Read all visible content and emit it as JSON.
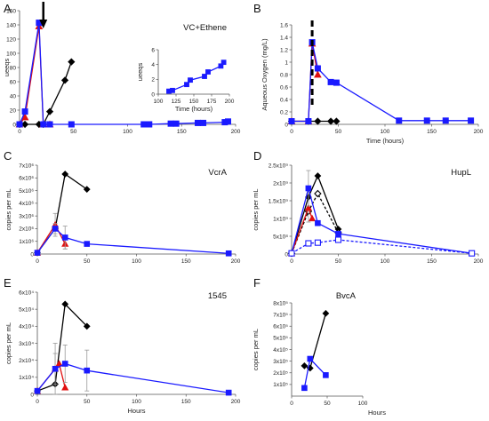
{
  "figure": {
    "panel_letters": [
      "A",
      "B",
      "C",
      "D",
      "E",
      "F"
    ]
  },
  "chart_data": [
    {
      "panel": "A",
      "type": "line",
      "title": "VC+Ethene",
      "xlabel": "",
      "ylabel": "ueeqs",
      "xlim": [
        0,
        200
      ],
      "ylim": [
        0,
        160
      ],
      "xticks": [
        "0",
        "50",
        "100",
        "150",
        "200"
      ],
      "yticks": [
        "0",
        "20",
        "40",
        "60",
        "80",
        "100",
        "120",
        "140",
        "160"
      ],
      "annotation": "arrow pointing down at ~22 hours",
      "series": [
        {
          "color": "#000000",
          "marker": "diamond",
          "x": [
            0,
            5,
            18,
            22,
            28,
            42,
            48
          ],
          "y": [
            0,
            0,
            0,
            0,
            18,
            62,
            88
          ]
        },
        {
          "color": "#e01010",
          "marker": "triangle",
          "x": [
            0,
            5,
            18,
            22,
            28
          ],
          "y": [
            0,
            10,
            138,
            0,
            0
          ]
        },
        {
          "color": "#1a1aff",
          "marker": "square",
          "x": [
            0,
            5,
            18,
            22,
            28,
            48,
            115,
            120,
            140,
            145,
            165,
            170,
            190,
            193
          ],
          "y": [
            0,
            18,
            143,
            0,
            0,
            0,
            0,
            0,
            1,
            1,
            2,
            2,
            3,
            4
          ]
        }
      ],
      "inset": {
        "xlabel": "Time (hours)",
        "ylabel": "ueeqs",
        "xlim": [
          100,
          200
        ],
        "ylim": [
          0,
          6
        ],
        "xticks": [
          "100",
          "125",
          "150",
          "175",
          "200"
        ],
        "yticks": [
          "0",
          "2",
          "4",
          "6"
        ],
        "series": [
          {
            "color": "#1a1aff",
            "marker": "square",
            "x": [
              115,
              120,
              140,
              145,
              165,
              170,
              188,
              192
            ],
            "y": [
              0.4,
              0.5,
              1.3,
              1.9,
              2.4,
              3.0,
              3.8,
              4.3
            ]
          }
        ]
      }
    },
    {
      "panel": "B",
      "type": "line",
      "title": "",
      "xlabel": "Time (hours)",
      "ylabel": "Aqueous Oxygen (mg/L)",
      "xlim": [
        0,
        200
      ],
      "ylim": [
        0,
        1.6
      ],
      "xticks": [
        "0",
        "50",
        "100",
        "150",
        "200"
      ],
      "yticks": [
        "0",
        "0.2",
        "0.4",
        "0.6",
        "0.8",
        "1",
        "1.2",
        "1.4",
        "1.6"
      ],
      "annotation": "dashed vertical line at ~22 hours",
      "series": [
        {
          "color": "#000000",
          "marker": "diamond",
          "x": [
            0,
            18,
            28,
            42,
            48
          ],
          "y": [
            0.05,
            0.05,
            0.05,
            0.05,
            0.05
          ]
        },
        {
          "color": "#e01010",
          "marker": "triangle",
          "x": [
            0,
            18,
            22,
            28
          ],
          "y": [
            0.05,
            0.05,
            1.3,
            0.8
          ]
        },
        {
          "color": "#1a1aff",
          "marker": "square",
          "x": [
            0,
            18,
            22,
            28,
            42,
            48,
            115,
            145,
            165,
            192
          ],
          "y": [
            0.05,
            0.05,
            1.32,
            0.9,
            0.68,
            0.67,
            0.06,
            0.06,
            0.06,
            0.06
          ]
        }
      ]
    },
    {
      "panel": "C",
      "type": "line",
      "title": "VcrA",
      "xlabel": "",
      "ylabel": "copies per mL",
      "xlim": [
        0,
        200
      ],
      "ylim": [
        0,
        7
      ],
      "ytick_unit": "× 10^6",
      "xticks": [
        "0",
        "50",
        "100",
        "150",
        "200"
      ],
      "yticks": [
        "0",
        "1x10⁶",
        "2x10⁶",
        "3x10⁶",
        "4x10⁶",
        "5x10⁶",
        "6x10⁶",
        "7x10⁶"
      ],
      "series": [
        {
          "color": "#000000",
          "marker": "diamond",
          "x": [
            0,
            18,
            28,
            50
          ],
          "y": [
            0.1,
            2.0,
            6.3,
            5.1
          ]
        },
        {
          "color": "#e01010",
          "marker": "triangle",
          "x": [
            0,
            18,
            28
          ],
          "y": [
            0.1,
            2.3,
            0.8
          ],
          "err": [
            0,
            0.9,
            0.4
          ]
        },
        {
          "color": "#1a1aff",
          "marker": "square",
          "x": [
            0,
            18,
            28,
            50,
            193
          ],
          "y": [
            0.1,
            2.0,
            1.3,
            0.8,
            0.05
          ],
          "err": [
            0,
            0.4,
            0.9,
            0,
            0
          ]
        }
      ]
    },
    {
      "panel": "D",
      "type": "line",
      "title": "HupL",
      "xlabel": "",
      "ylabel": "copies per mL",
      "xlim": [
        0,
        200
      ],
      "ylim": [
        0,
        2.5
      ],
      "ytick_unit": "× 10^9",
      "xticks": [
        "0",
        "50",
        "100",
        "150",
        "200"
      ],
      "yticks": [
        "0",
        "5x10⁸",
        "1x10⁹",
        "1.5x10⁹",
        "2x10⁹",
        "2.5x10⁹"
      ],
      "series": [
        {
          "color": "#000000",
          "marker": "diamond",
          "style": "solid",
          "x": [
            0,
            18,
            28,
            50
          ],
          "y": [
            0.02,
            1.6,
            2.2,
            0.7
          ]
        },
        {
          "color": "#000000",
          "marker": "diamond-open",
          "style": "dashed",
          "x": [
            0,
            18,
            28,
            50
          ],
          "y": [
            0.02,
            1.2,
            1.7,
            0.6
          ]
        },
        {
          "color": "#e01010",
          "marker": "triangle",
          "style": "solid",
          "x": [
            0,
            18,
            22
          ],
          "y": [
            0.02,
            1.3,
            1.0
          ],
          "err": [
            0,
            0.4,
            0
          ]
        },
        {
          "color": "#1a1aff",
          "marker": "square",
          "style": "solid",
          "x": [
            0,
            18,
            28,
            50,
            193
          ],
          "y": [
            0.02,
            1.85,
            0.87,
            0.57,
            0.02
          ],
          "err": [
            0,
            0.5,
            0,
            0,
            0
          ]
        },
        {
          "color": "#1a1aff",
          "marker": "square-open",
          "style": "dashed",
          "x": [
            0,
            18,
            28,
            50,
            193
          ],
          "y": [
            0.02,
            0.3,
            0.32,
            0.4,
            0.02
          ]
        }
      ]
    },
    {
      "panel": "E",
      "type": "line",
      "title": "1545",
      "xlabel": "Hours",
      "ylabel": "copies per mL",
      "xlim": [
        0,
        200
      ],
      "ylim": [
        0,
        6
      ],
      "ytick_unit": "× 10^4",
      "xticks": [
        "0",
        "50",
        "100",
        "150",
        "200"
      ],
      "yticks": [
        "0",
        "1x10⁴",
        "2x10⁴",
        "3x10⁴",
        "4x10⁴",
        "5x10⁴",
        "6x10⁴"
      ],
      "series": [
        {
          "color": "#000000",
          "marker": "diamond",
          "x": [
            0,
            18,
            28,
            50
          ],
          "y": [
            0.2,
            0.6,
            5.3,
            4.0
          ]
        },
        {
          "color": "#e01010",
          "marker": "triangle",
          "x": [
            0,
            18,
            22,
            28
          ],
          "y": [
            0.2,
            1.5,
            1.8,
            0.4
          ],
          "err": [
            0,
            0.9,
            0,
            0
          ]
        },
        {
          "color": "#1a1aff",
          "marker": "square",
          "x": [
            0,
            18,
            28,
            50,
            193
          ],
          "y": [
            0.2,
            1.5,
            1.8,
            1.4,
            0.1
          ],
          "err": [
            0,
            1.5,
            1.1,
            1.2,
            0
          ]
        }
      ]
    },
    {
      "panel": "F",
      "type": "line",
      "title": "BvcA",
      "xlabel": "Hours",
      "ylabel": "copies per mL",
      "xlim": [
        0,
        100
      ],
      "ylim": [
        0,
        8
      ],
      "ytick_unit": "× 10^5",
      "xticks": [
        "0",
        "50",
        "100"
      ],
      "yticks": [
        "1x10⁵",
        "2x10⁵",
        "3x10⁵",
        "4x10⁵",
        "5x10⁵",
        "6x10⁵",
        "7x10⁵",
        "8x10⁵"
      ],
      "series": [
        {
          "color": "#000000",
          "marker": "diamond",
          "x": [
            18,
            26,
            48
          ],
          "y": [
            2.6,
            2.4,
            7.1
          ]
        },
        {
          "color": "#1a1aff",
          "marker": "square",
          "x": [
            18,
            26,
            48
          ],
          "y": [
            0.7,
            3.2,
            1.8
          ]
        }
      ]
    }
  ]
}
